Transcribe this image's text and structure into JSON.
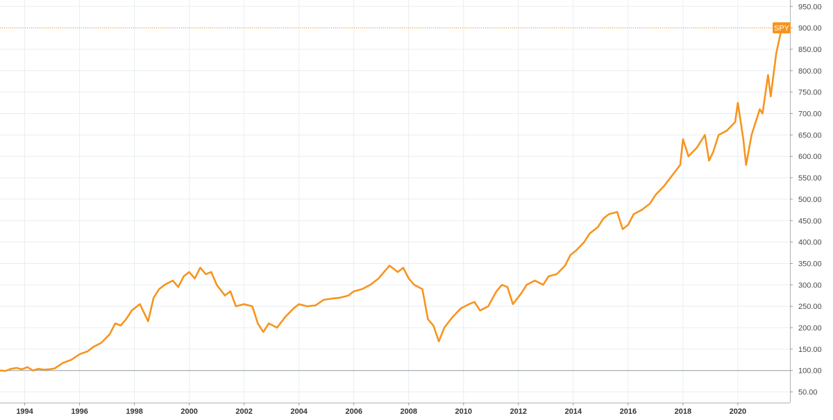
{
  "chart_data": {
    "type": "line",
    "title": "",
    "xlabel": "",
    "ylabel": "",
    "xlim": [
      1993.1,
      2021.9
    ],
    "ylim": [
      25,
      965
    ],
    "grid": true,
    "x_ticks": [
      {
        "x": 1994,
        "label": "1994"
      },
      {
        "x": 1996,
        "label": "1996"
      },
      {
        "x": 1998,
        "label": "1998"
      },
      {
        "x": 2000,
        "label": "2000"
      },
      {
        "x": 2002,
        "label": "2002"
      },
      {
        "x": 2004,
        "label": "2004"
      },
      {
        "x": 2006,
        "label": "2006"
      },
      {
        "x": 2008,
        "label": "2008"
      },
      {
        "x": 2010,
        "label": "2010"
      },
      {
        "x": 2012,
        "label": "2012"
      },
      {
        "x": 2014,
        "label": "2014"
      },
      {
        "x": 2016,
        "label": "2016"
      },
      {
        "x": 2018,
        "label": "2018"
      },
      {
        "x": 2020,
        "label": "2020"
      }
    ],
    "y_ticks": [
      {
        "y": 50,
        "label": "50.00"
      },
      {
        "y": 100,
        "label": "100.00"
      },
      {
        "y": 150,
        "label": "150.00"
      },
      {
        "y": 200,
        "label": "200.00"
      },
      {
        "y": 250,
        "label": "250.00"
      },
      {
        "y": 300,
        "label": "300.00"
      },
      {
        "y": 350,
        "label": "350.00"
      },
      {
        "y": 400,
        "label": "400.00"
      },
      {
        "y": 450,
        "label": "450.00"
      },
      {
        "y": 500,
        "label": "500.00"
      },
      {
        "y": 550,
        "label": "550.00"
      },
      {
        "y": 600,
        "label": "600.00"
      },
      {
        "y": 650,
        "label": "650.00"
      },
      {
        "y": 700,
        "label": "700.00"
      },
      {
        "y": 750,
        "label": "750.00"
      },
      {
        "y": 800,
        "label": "800.00"
      },
      {
        "y": 850,
        "label": "850.00"
      },
      {
        "y": 900,
        "label": "900.00"
      },
      {
        "y": 950,
        "label": "950.00"
      }
    ],
    "baseline": 100,
    "series": [
      {
        "name": "SPY",
        "color": "#f7941d",
        "last_value": 900,
        "last_label": "SPY",
        "x": [
          1993.1,
          1993.3,
          1993.5,
          1993.7,
          1993.9,
          1994.1,
          1994.3,
          1994.5,
          1994.7,
          1994.9,
          1995.1,
          1995.4,
          1995.7,
          1996.0,
          1996.3,
          1996.5,
          1996.8,
          1997.1,
          1997.3,
          1997.5,
          1997.7,
          1997.9,
          1998.2,
          1998.5,
          1998.7,
          1998.9,
          1999.1,
          1999.4,
          1999.6,
          1999.8,
          2000.0,
          2000.2,
          2000.4,
          2000.6,
          2000.8,
          2001.0,
          2001.3,
          2001.5,
          2001.7,
          2002.0,
          2002.3,
          2002.5,
          2002.7,
          2002.9,
          2003.2,
          2003.5,
          2003.8,
          2004.0,
          2004.3,
          2004.6,
          2004.9,
          2005.2,
          2005.5,
          2005.8,
          2006.0,
          2006.3,
          2006.6,
          2006.9,
          2007.1,
          2007.3,
          2007.6,
          2007.8,
          2008.0,
          2008.2,
          2008.5,
          2008.7,
          2008.9,
          2009.1,
          2009.3,
          2009.6,
          2009.9,
          2010.2,
          2010.4,
          2010.6,
          2010.9,
          2011.2,
          2011.4,
          2011.6,
          2011.8,
          2012.1,
          2012.3,
          2012.6,
          2012.9,
          2013.1,
          2013.4,
          2013.7,
          2013.9,
          2014.1,
          2014.4,
          2014.6,
          2014.9,
          2015.1,
          2015.3,
          2015.6,
          2015.8,
          2016.0,
          2016.2,
          2016.5,
          2016.8,
          2017.0,
          2017.3,
          2017.6,
          2017.9,
          2018.0,
          2018.2,
          2018.5,
          2018.8,
          2018.95,
          2019.1,
          2019.3,
          2019.6,
          2019.9,
          2020.0,
          2020.2,
          2020.3,
          2020.5,
          2020.8,
          2020.9,
          2021.1,
          2021.2,
          2021.4,
          2021.6
        ],
        "y": [
          100,
          99,
          104,
          106,
          103,
          108,
          100,
          104,
          102,
          103,
          105,
          118,
          125,
          138,
          145,
          155,
          165,
          185,
          210,
          205,
          220,
          240,
          255,
          215,
          270,
          290,
          300,
          310,
          295,
          320,
          330,
          315,
          340,
          325,
          330,
          300,
          275,
          285,
          250,
          255,
          250,
          210,
          190,
          210,
          200,
          225,
          245,
          255,
          250,
          252,
          265,
          268,
          270,
          275,
          285,
          290,
          300,
          315,
          330,
          345,
          330,
          340,
          315,
          300,
          290,
          220,
          205,
          168,
          200,
          225,
          245,
          255,
          260,
          240,
          250,
          285,
          300,
          295,
          255,
          280,
          300,
          310,
          300,
          320,
          325,
          345,
          370,
          380,
          400,
          420,
          435,
          455,
          465,
          470,
          430,
          440,
          465,
          475,
          490,
          510,
          530,
          555,
          580,
          640,
          600,
          620,
          650,
          590,
          610,
          650,
          660,
          680,
          725,
          640,
          580,
          650,
          710,
          700,
          790,
          740,
          840,
          900
        ]
      }
    ]
  }
}
